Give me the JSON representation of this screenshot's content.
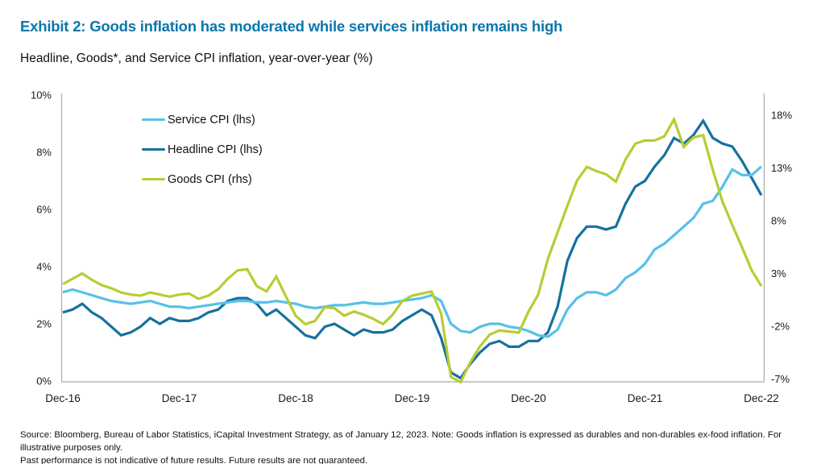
{
  "header": {
    "title": "Exhibit 2: Goods inflation has moderated while services inflation remains high",
    "subtitle": "Headline, Goods*, and Service CPI inflation, year-over-year (%)"
  },
  "footer": {
    "line1": "Source: Bloomberg, Bureau of Labor Statistics, iCapital Investment Strategy, as of January 12, 2023. Note: Goods inflation is expressed as durables and non-durables ex-food inflation. For illustrative purposes only.",
    "line2": "Past performance is not indicative of future results. Future results are not guaranteed."
  },
  "colors": {
    "title": "#0b76ac",
    "service": "#56c1e9",
    "headline": "#16719f",
    "goods": "#b9cc33",
    "axis": "#ababab",
    "tick_text": "#1a1a1a"
  },
  "chart_data": {
    "type": "line",
    "title": "Exhibit 2: Goods inflation has moderated while services inflation remains high",
    "subtitle": "Headline, Goods*, and Service CPI inflation, year-over-year (%)",
    "grid": false,
    "legend_position": "top-left-inside",
    "x_start_label": "Dec-16",
    "x_tick_labels": [
      "Dec-16",
      "Dec-17",
      "Dec-18",
      "Dec-19",
      "Dec-20",
      "Dec-21",
      "Dec-22"
    ],
    "x_tick_months": [
      0,
      12,
      24,
      36,
      48,
      60,
      72
    ],
    "left_axis": {
      "range": [
        0,
        10
      ],
      "tick_values": [
        10,
        8,
        6,
        4,
        2,
        0
      ],
      "tick_labels": [
        "10%",
        "8%",
        "6%",
        "4%",
        "2%",
        "0%"
      ]
    },
    "right_axis": {
      "range": [
        -7,
        20
      ],
      "tick_values": [
        18,
        13,
        8,
        3,
        -2,
        -7
      ],
      "tick_labels": [
        "18%",
        "13%",
        "8%",
        "3%",
        "-2%",
        "-7%"
      ]
    },
    "series": [
      {
        "name": "Service CPI (lhs)",
        "axis": "lhs",
        "color_key": "service",
        "values": [
          3.1,
          3.2,
          3.1,
          3.0,
          2.9,
          2.8,
          2.75,
          2.7,
          2.75,
          2.8,
          2.7,
          2.6,
          2.6,
          2.55,
          2.6,
          2.65,
          2.7,
          2.75,
          2.8,
          2.8,
          2.75,
          2.75,
          2.8,
          2.75,
          2.7,
          2.6,
          2.55,
          2.6,
          2.65,
          2.65,
          2.7,
          2.75,
          2.7,
          2.7,
          2.75,
          2.8,
          2.85,
          2.9,
          3.0,
          2.8,
          2.0,
          1.75,
          1.7,
          1.9,
          2.0,
          2.0,
          1.9,
          1.85,
          1.75,
          1.6,
          1.55,
          1.8,
          2.5,
          2.9,
          3.1,
          3.1,
          3.0,
          3.2,
          3.6,
          3.8,
          4.1,
          4.6,
          4.8,
          5.1,
          5.4,
          5.7,
          6.2,
          6.3,
          6.8,
          7.4,
          7.2,
          7.2,
          7.5
        ]
      },
      {
        "name": "Headline CPI (lhs)",
        "axis": "lhs",
        "color_key": "headline",
        "values": [
          2.4,
          2.5,
          2.7,
          2.4,
          2.2,
          1.9,
          1.6,
          1.7,
          1.9,
          2.2,
          2.0,
          2.2,
          2.1,
          2.1,
          2.2,
          2.4,
          2.5,
          2.8,
          2.9,
          2.9,
          2.7,
          2.3,
          2.5,
          2.2,
          1.9,
          1.6,
          1.5,
          1.9,
          2.0,
          1.8,
          1.6,
          1.8,
          1.7,
          1.7,
          1.8,
          2.1,
          2.3,
          2.5,
          2.3,
          1.5,
          0.3,
          0.1,
          0.6,
          1.0,
          1.3,
          1.4,
          1.2,
          1.2,
          1.4,
          1.4,
          1.7,
          2.6,
          4.2,
          5.0,
          5.4,
          5.4,
          5.3,
          5.4,
          6.2,
          6.8,
          7.0,
          7.5,
          7.9,
          8.5,
          8.3,
          8.6,
          9.1,
          8.5,
          8.3,
          8.2,
          7.7,
          7.1,
          6.5
        ]
      },
      {
        "name": "Goods CPI (rhs)",
        "axis": "rhs",
        "color_key": "goods",
        "values": [
          2.0,
          2.5,
          3.0,
          2.4,
          1.9,
          1.6,
          1.2,
          1.0,
          0.9,
          1.2,
          1.0,
          0.8,
          1.0,
          1.1,
          0.6,
          0.9,
          1.5,
          2.5,
          3.3,
          3.4,
          1.8,
          1.3,
          2.7,
          0.8,
          -1.0,
          -1.8,
          -1.5,
          -0.2,
          -0.3,
          -1.0,
          -0.6,
          -0.9,
          -1.3,
          -1.8,
          -0.9,
          0.4,
          0.9,
          1.1,
          1.3,
          -0.8,
          -6.8,
          -7.3,
          -5.4,
          -3.9,
          -2.8,
          -2.4,
          -2.5,
          -2.6,
          -0.6,
          1.0,
          4.4,
          6.9,
          9.4,
          11.8,
          13.1,
          12.7,
          12.4,
          11.7,
          13.8,
          15.3,
          15.6,
          15.6,
          16.0,
          17.6,
          15.0,
          15.9,
          16.1,
          12.8,
          9.8,
          7.6,
          5.5,
          3.3,
          1.8
        ]
      }
    ]
  }
}
